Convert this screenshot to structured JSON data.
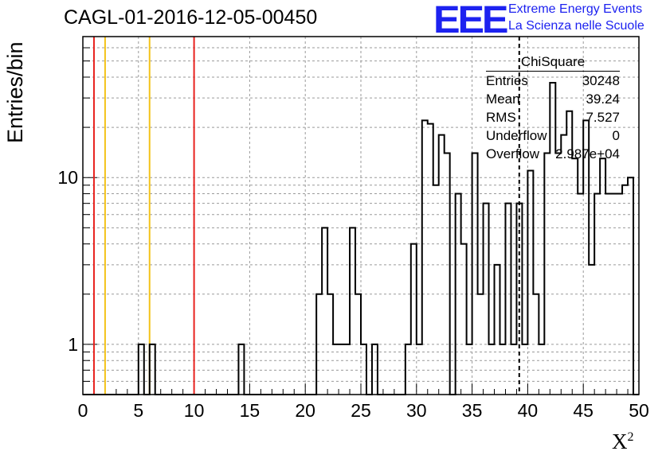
{
  "title": "CAGL-01-2016-12-05-00450",
  "logo": {
    "mark": "EEE",
    "line1": "Extreme Energy Events",
    "line2": "La Scienza nelle Scuole"
  },
  "colors": {
    "red_line": "#e8221e",
    "yellow_line": "#f4c31a",
    "logo": "#1d22f0"
  },
  "chart_data": {
    "type": "histogram",
    "log_y": true,
    "grid": true,
    "xlabel": "X",
    "xlabel_sup": "2",
    "ylabel": "Entries/bin",
    "xlim": [
      0,
      50
    ],
    "ylim": [
      0.5,
      70
    ],
    "x_ticks": [
      "0",
      "5",
      "10",
      "15",
      "20",
      "25",
      "30",
      "35",
      "40",
      "45",
      "50"
    ],
    "y_ticks": [
      "1",
      "10"
    ],
    "bin_width": 0.5,
    "bins": [
      [
        5,
        1
      ],
      [
        6,
        1
      ],
      [
        14,
        1
      ],
      [
        21,
        2
      ],
      [
        21.5,
        5
      ],
      [
        22,
        2
      ],
      [
        22.5,
        1
      ],
      [
        23,
        1
      ],
      [
        23.5,
        1
      ],
      [
        24,
        5
      ],
      [
        24.5,
        2
      ],
      [
        25,
        1
      ],
      [
        26,
        1
      ],
      [
        29,
        1
      ],
      [
        29.5,
        4
      ],
      [
        30,
        1
      ],
      [
        30.5,
        22
      ],
      [
        31,
        21
      ],
      [
        31.5,
        9
      ],
      [
        32,
        18
      ],
      [
        32.5,
        14
      ],
      [
        33.5,
        8
      ],
      [
        34,
        4
      ],
      [
        34.5,
        1
      ],
      [
        35,
        14
      ],
      [
        35.5,
        2
      ],
      [
        36,
        7
      ],
      [
        36.5,
        1
      ],
      [
        37,
        3
      ],
      [
        37.5,
        1
      ],
      [
        38,
        7
      ],
      [
        38.5,
        1
      ],
      [
        39,
        7
      ],
      [
        39.5,
        1
      ],
      [
        40,
        11
      ],
      [
        40.5,
        2
      ],
      [
        41,
        1
      ],
      [
        41.5,
        14
      ],
      [
        42,
        37
      ],
      [
        42.5,
        14
      ],
      [
        43,
        18
      ],
      [
        43.5,
        25
      ],
      [
        44,
        13
      ],
      [
        44.5,
        8
      ],
      [
        45,
        22
      ],
      [
        45.5,
        3
      ],
      [
        46,
        8
      ],
      [
        46.5,
        13
      ],
      [
        47,
        8
      ],
      [
        47.5,
        8
      ],
      [
        48,
        8
      ],
      [
        48.5,
        9
      ],
      [
        49,
        10
      ]
    ],
    "vlines": [
      {
        "x": 1,
        "color": "red"
      },
      {
        "x": 2,
        "color": "yellow"
      },
      {
        "x": 6,
        "color": "yellow"
      },
      {
        "x": 10,
        "color": "red"
      },
      {
        "x": 39.24,
        "color": "black",
        "style": "dashed"
      }
    ]
  },
  "stats": {
    "title": "ChiSquare",
    "rows": [
      {
        "label": "Entries",
        "value": "30248"
      },
      {
        "label": "Mean",
        "value": "39.24"
      },
      {
        "label": "RMS",
        "value": "7.527"
      },
      {
        "label": "Underflow",
        "value": "0"
      },
      {
        "label": "Overflow",
        "value": "2.987e+04"
      }
    ]
  }
}
